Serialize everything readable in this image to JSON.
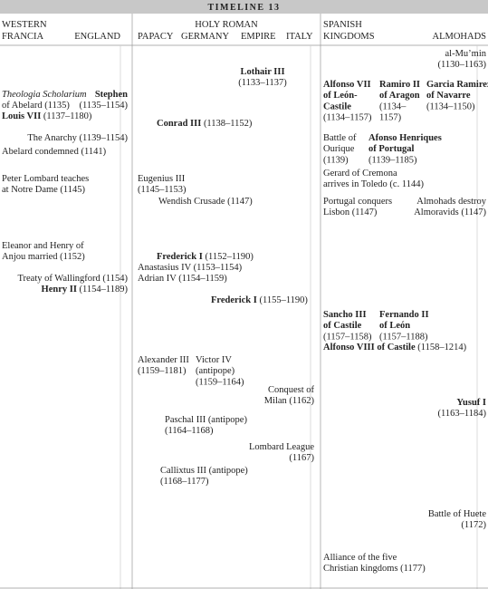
{
  "title": "TIMELINE 13",
  "headers": [
    "WESTERN",
    "FRANCIA",
    "ENGLAND",
    "HOLY ROMAN",
    "PAPACY",
    "GERMANY",
    "EMPIRE",
    "ITALY",
    "SPANISH",
    "KINGDOMS",
    "ALMOHADS"
  ],
  "entries": [
    {
      "lines": [
        [
          "al-Mu’min"
        ],
        [
          "(1130–1163)"
        ]
      ]
    },
    {
      "lines": [
        [
          {
            "b": "Lothair III"
          }
        ],
        [
          "(1133–1137)"
        ]
      ]
    },
    {
      "lines": [
        [
          {
            "b": "Alfonso VII"
          }
        ],
        [
          {
            "b": "of León-"
          }
        ],
        [
          {
            "b": "Castile"
          }
        ],
        [
          "(1134–1157)"
        ]
      ]
    },
    {
      "lines": [
        [
          {
            "b": "Ramiro II"
          }
        ],
        [
          {
            "b": "of Aragon"
          }
        ],
        [
          "(1134–"
        ],
        [
          "1157)"
        ]
      ]
    },
    {
      "lines": [
        [
          {
            "b": "Garcia Ramirez"
          }
        ],
        [
          {
            "b": "of Navarre"
          }
        ],
        [
          "(1134–1150)"
        ]
      ]
    },
    {
      "lines": [
        [
          {
            "i": "Theologia Scholarium"
          }
        ],
        [
          "of Abelard (1135)"
        ]
      ]
    },
    {
      "lines": [
        [
          {
            "b": "Stephen"
          }
        ],
        [
          "(1135–1154)"
        ]
      ]
    },
    {
      "lines": [
        [
          {
            "b": "Louis VII"
          },
          " (1137–1180)"
        ]
      ]
    },
    {
      "lines": [
        [
          {
            "b": "Conrad III"
          },
          " (1138–1152)"
        ]
      ]
    },
    {
      "lines": [
        [
          "Battle of"
        ],
        [
          "Ourique"
        ],
        [
          "(1139)"
        ]
      ]
    },
    {
      "lines": [
        [
          {
            "b": "Afonso Henriques"
          }
        ],
        [
          {
            "b": "of Portugal"
          }
        ],
        [
          "(1139–1185)"
        ]
      ]
    },
    {
      "lines": [
        [
          "The Anarchy (1139–1154)"
        ]
      ]
    },
    {
      "lines": [
        [
          "Abelard condemned (1141)"
        ]
      ]
    },
    {
      "lines": [
        [
          "Gerard of Cremona"
        ],
        [
          "arrives in Toledo (c. 1144)"
        ]
      ]
    },
    {
      "lines": [
        [
          "Peter Lombard teaches"
        ],
        [
          "at Notre Dame (1145)"
        ]
      ]
    },
    {
      "lines": [
        [
          "Eugenius III"
        ],
        [
          "(1145–1153)"
        ]
      ]
    },
    {
      "lines": [
        [
          "Wendish Crusade (1147)"
        ]
      ]
    },
    {
      "lines": [
        [
          "Portugal conquers"
        ],
        [
          "Lisbon (1147)"
        ]
      ]
    },
    {
      "lines": [
        [
          "Almohads destroy"
        ],
        [
          "Almoravids (1147)"
        ]
      ]
    },
    {
      "lines": [
        [
          "Eleanor and Henry of"
        ],
        [
          "Anjou married (1152)"
        ]
      ]
    },
    {
      "lines": [
        [
          {
            "b": "Frederick I"
          },
          " (1152–1190)"
        ]
      ]
    },
    {
      "lines": [
        [
          "Anastasius IV (1153–1154)"
        ]
      ]
    },
    {
      "lines": [
        [
          "Adrian IV (1154–1159)"
        ]
      ]
    },
    {
      "lines": [
        [
          "Treaty of Wallingford (1154)"
        ]
      ]
    },
    {
      "lines": [
        [
          {
            "b": "Henry II"
          },
          " (1154–1189)"
        ]
      ]
    },
    {
      "lines": [
        [
          {
            "b": "Frederick I"
          },
          " (1155–1190)"
        ]
      ]
    },
    {
      "lines": [
        [
          {
            "b": "Sancho III"
          }
        ],
        [
          {
            "b": "of Castile"
          }
        ],
        [
          "(1157–1158)"
        ]
      ]
    },
    {
      "lines": [
        [
          {
            "b": "Fernando II"
          }
        ],
        [
          {
            "b": "of León"
          }
        ],
        [
          "(1157–1188)"
        ]
      ]
    },
    {
      "lines": [
        [
          {
            "b": "Alfonso VIII of Castile"
          },
          " (1158–1214)"
        ]
      ]
    },
    {
      "lines": [
        [
          "Alexander III"
        ],
        [
          "(1159–1181)"
        ]
      ]
    },
    {
      "lines": [
        [
          "Victor IV"
        ],
        [
          "(antipope)"
        ],
        [
          "(1159–1164)"
        ]
      ]
    },
    {
      "lines": [
        [
          "Conquest of"
        ],
        [
          "Milan (1162)"
        ]
      ]
    },
    {
      "lines": [
        [
          {
            "b": "Yusuf I"
          }
        ],
        [
          "(1163–1184)"
        ]
      ]
    },
    {
      "lines": [
        [
          "Paschal III (antipope)"
        ],
        [
          "(1164–1168)"
        ]
      ]
    },
    {
      "lines": [
        [
          "Lombard League"
        ],
        [
          "(1167)"
        ]
      ]
    },
    {
      "lines": [
        [
          "Callixtus III (antipope)"
        ],
        [
          "(1168–1177)"
        ]
      ]
    },
    {
      "lines": [
        [
          "Battle of Huete"
        ],
        [
          "(1172)"
        ]
      ]
    },
    {
      "lines": [
        [
          "Alliance of the five"
        ],
        [
          "Christian kingdoms (1177)"
        ]
      ]
    }
  ]
}
